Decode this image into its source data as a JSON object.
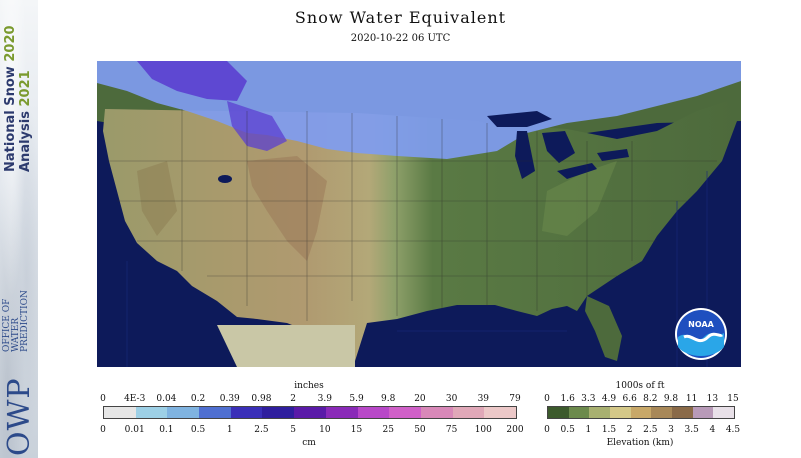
{
  "banner": {
    "line1": "National Snow",
    "line1_year": "2020",
    "line2": "Analysis",
    "line2_year": "2021",
    "logo": "OWP",
    "logo_sub": [
      "OFFICE OF",
      "WATER",
      "PREDICTION"
    ]
  },
  "title": "Snow Water Equivalent",
  "subtitle": "2020-10-22 06 UTC",
  "map": {
    "extent": "Conterminous United States",
    "colors": {
      "ocean": "#0d1a5a",
      "grassland": "#4d6a3c",
      "plains": "#8ea06a",
      "desert": "#b9a57a",
      "mountains": "#9a7a5a",
      "snow_light": "#7f9cf0",
      "snow_heavy": "#5b3fd0",
      "no_data": "#c9c7a6"
    }
  },
  "noaa_logo": "NOAA",
  "swe_legend": {
    "unit_top": "inches",
    "unit_bottom": "cm",
    "inches_ticks": [
      "0",
      "4E-3",
      "0.04",
      "0.2",
      "0.39",
      "0.98",
      "2",
      "3.9",
      "5.9",
      "9.8",
      "20",
      "30",
      "39",
      "79"
    ],
    "cm_ticks": [
      "0",
      "0.01",
      "0.1",
      "0.5",
      "1",
      "2.5",
      "5",
      "10",
      "15",
      "25",
      "50",
      "75",
      "100",
      "200"
    ],
    "colors": [
      "#e6e6e6",
      "#9dd0e6",
      "#7fb3e0",
      "#4f6fd1",
      "#3a2fb8",
      "#2f1e9e",
      "#5a1aa8",
      "#8a2ab8",
      "#b848c8",
      "#d060c8",
      "#d888b8",
      "#e0a8b8",
      "#ecc8c8"
    ]
  },
  "elev_legend": {
    "unit_top": "1000s of ft",
    "unit_bottom": "Elevation (km)",
    "ft_ticks": [
      "0",
      "1.6",
      "3.3",
      "4.9",
      "6.6",
      "8.2",
      "9.8",
      "11",
      "13",
      "15"
    ],
    "km_ticks": [
      "0",
      "0.5",
      "1",
      "1.5",
      "2",
      "2.5",
      "3",
      "3.5",
      "4",
      "4.5"
    ],
    "colors": [
      "#3c5a2c",
      "#6c8a4c",
      "#a8b070",
      "#d4c888",
      "#c8a868",
      "#a88858",
      "#8a6a48",
      "#b89ab8",
      "#e8e0e8"
    ]
  }
}
